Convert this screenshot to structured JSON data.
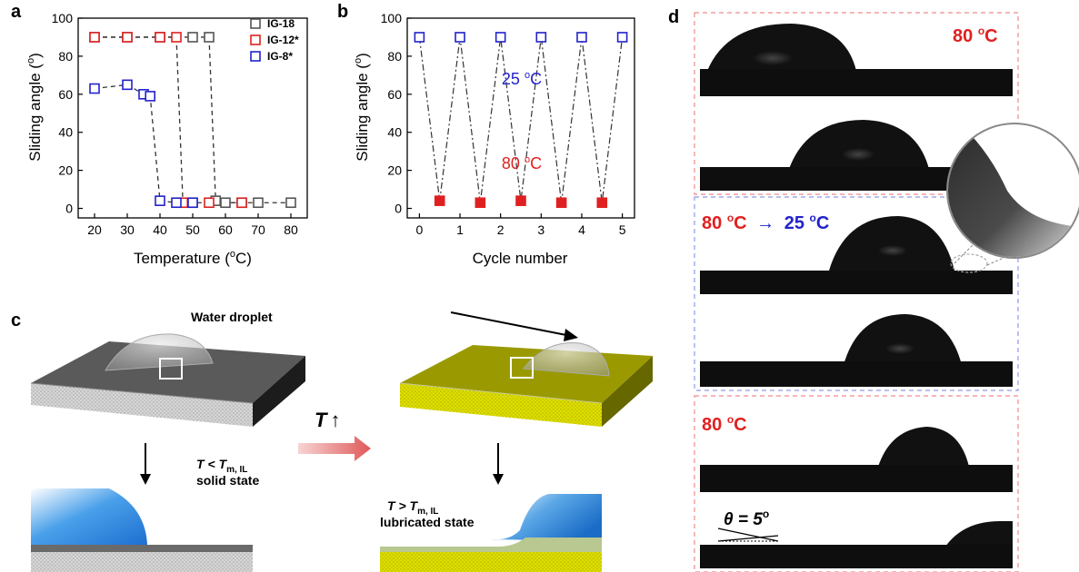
{
  "panels": {
    "a": "a",
    "b": "b",
    "c": "c",
    "d": "d"
  },
  "chart_data": [
    {
      "type": "scatter",
      "panel": "a",
      "xlabel": "Temperature (",
      "xlabel_deg": "o",
      "xlabel_tail": "C)",
      "ylabel": "Sliding angle (",
      "ylabel_deg": "o",
      "ylabel_tail": ")",
      "xlim": [
        15,
        85
      ],
      "ylim": [
        -5,
        100
      ],
      "xticks": [
        20,
        30,
        40,
        50,
        60,
        70,
        80
      ],
      "yticks": [
        0,
        20,
        40,
        60,
        80,
        100
      ],
      "legend_position": "top-right",
      "series": [
        {
          "name": "IG-18",
          "color": "#555555",
          "x": [
            20,
            30,
            40,
            50,
            55,
            57,
            60,
            65,
            70,
            80
          ],
          "y": [
            90,
            90,
            90,
            90,
            90,
            4,
            3,
            3,
            3,
            3
          ]
        },
        {
          "name": "IG-12*",
          "color": "#e02020",
          "x": [
            20,
            30,
            40,
            45,
            47,
            50,
            55,
            65
          ],
          "y": [
            90,
            90,
            90,
            90,
            3,
            3,
            3,
            3
          ]
        },
        {
          "name": "IG-8*",
          "color": "#2222cc",
          "x": [
            20,
            30,
            35,
            37,
            40,
            45,
            50
          ],
          "y": [
            63,
            65,
            60,
            59,
            4,
            3,
            3
          ]
        }
      ]
    },
    {
      "type": "scatter",
      "panel": "b",
      "xlabel": "Cycle number",
      "ylabel": "Sliding angle (",
      "ylabel_deg": "o",
      "ylabel_tail": ")",
      "xlim": [
        -0.3,
        5.3
      ],
      "ylim": [
        -5,
        100
      ],
      "xticks": [
        0,
        1,
        2,
        3,
        4,
        5
      ],
      "yticks": [
        0,
        20,
        40,
        60,
        80,
        100
      ],
      "annotations": [
        {
          "text": "25 ",
          "sup": "o",
          "tail": "C",
          "color": "#2222cc"
        },
        {
          "text": "80 ",
          "sup": "o",
          "tail": "C",
          "color": "#e02020"
        }
      ],
      "series": [
        {
          "name": "25 °C",
          "color": "#2222cc",
          "x": [
            0,
            1,
            2,
            3,
            4,
            5
          ],
          "y": [
            90,
            90,
            90,
            90,
            90,
            90
          ]
        },
        {
          "name": "80 °C",
          "color": "#e02020",
          "x": [
            0.5,
            1.5,
            2.5,
            3.5,
            4.5
          ],
          "y": [
            4,
            3,
            4,
            3,
            3
          ]
        }
      ]
    }
  ],
  "schematic": {
    "water_droplet_label": "Water droplet",
    "temp_arrow_label": "T",
    "temp_arrow_symbol": "↑",
    "solid_condition": {
      "pre": "T < T",
      "sub": "m, IL"
    },
    "solid_state_label": "solid state",
    "lubricated_condition": {
      "pre": "T > T",
      "sub": "m, IL"
    },
    "lubricated_state_label": "lubricated state"
  },
  "photos": {
    "top_label": "80 ",
    "top_label_sup": "o",
    "top_label_tail": "C",
    "middle_label_red": "80 ",
    "middle_label_red_sup": "o",
    "middle_label_red_tail": "C",
    "middle_arrow": "→",
    "middle_label_blue": "25 ",
    "middle_label_blue_sup": "o",
    "middle_label_blue_tail": "C",
    "bottom_label": "80 ",
    "bottom_label_sup": "o",
    "bottom_label_tail": "C",
    "angle_label": "θ = 5",
    "angle_sup": "o"
  }
}
